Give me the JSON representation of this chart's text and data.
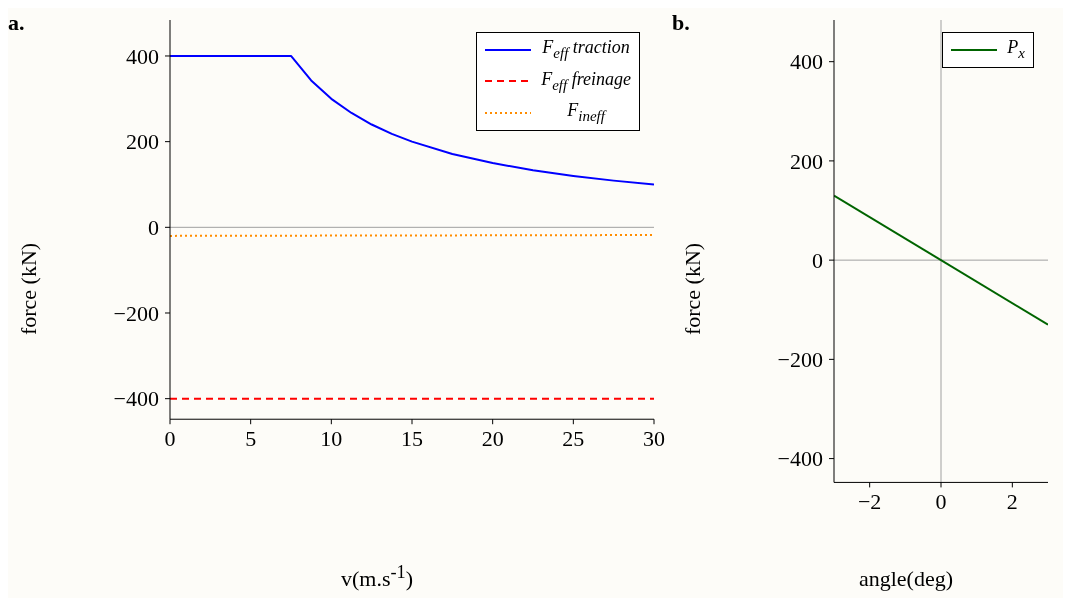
{
  "chart_data": [
    {
      "type": "line",
      "title": "a.",
      "xlabel": "v(m.s$^{-1}$)",
      "ylabel": "force (kN)",
      "xlim": [
        0,
        30
      ],
      "ylim": [
        -448,
        484
      ],
      "xticks": [
        0,
        5,
        10,
        15,
        20,
        25,
        30
      ],
      "yticks": [
        -400,
        -200,
        0,
        200,
        400
      ],
      "legend": "top right",
      "ref_lines": [
        {
          "axis": "y",
          "value": 0,
          "color": "#a0a0a0"
        }
      ],
      "series": [
        {
          "name": "F$_{eff}$ traction",
          "color": "#0000ff",
          "line_style": "solid",
          "x": [
            0,
            7.5,
            8.75,
            10,
            11.25,
            12.5,
            13.75,
            15,
            17.5,
            20,
            22.5,
            25,
            27.5,
            30
          ],
          "values": [
            400,
            400,
            343,
            300,
            267,
            240,
            218,
            200,
            171,
            150,
            133,
            120,
            109,
            100
          ]
        },
        {
          "name": "F$_{eff}$ freinage",
          "color": "#ff0000",
          "line_style": "dashed",
          "x": [
            0,
            30
          ],
          "values": [
            -400,
            -400
          ]
        },
        {
          "name": "F$_{ineff}$",
          "color": "#ff8c00",
          "line_style": "dotted",
          "x": [
            0,
            30
          ],
          "values": [
            -20,
            -18
          ]
        }
      ]
    },
    {
      "type": "line",
      "title": "b.",
      "xlabel": "angle(deg)",
      "ylabel": "force (kN)",
      "xlim": [
        -3,
        3
      ],
      "ylim": [
        -448,
        484
      ],
      "xticks": [
        -2,
        0,
        2
      ],
      "yticks": [
        -400,
        -200,
        0,
        200,
        400
      ],
      "legend": "top right",
      "ref_lines": [
        {
          "axis": "x",
          "value": 0,
          "color": "#a0a0a0"
        },
        {
          "axis": "y",
          "value": 0,
          "color": "#a0a0a0"
        }
      ],
      "series": [
        {
          "name": "P$_{x}$",
          "color": "#006400",
          "line_style": "solid",
          "x": [
            -3,
            3
          ],
          "values": [
            130,
            -130
          ]
        }
      ]
    }
  ]
}
